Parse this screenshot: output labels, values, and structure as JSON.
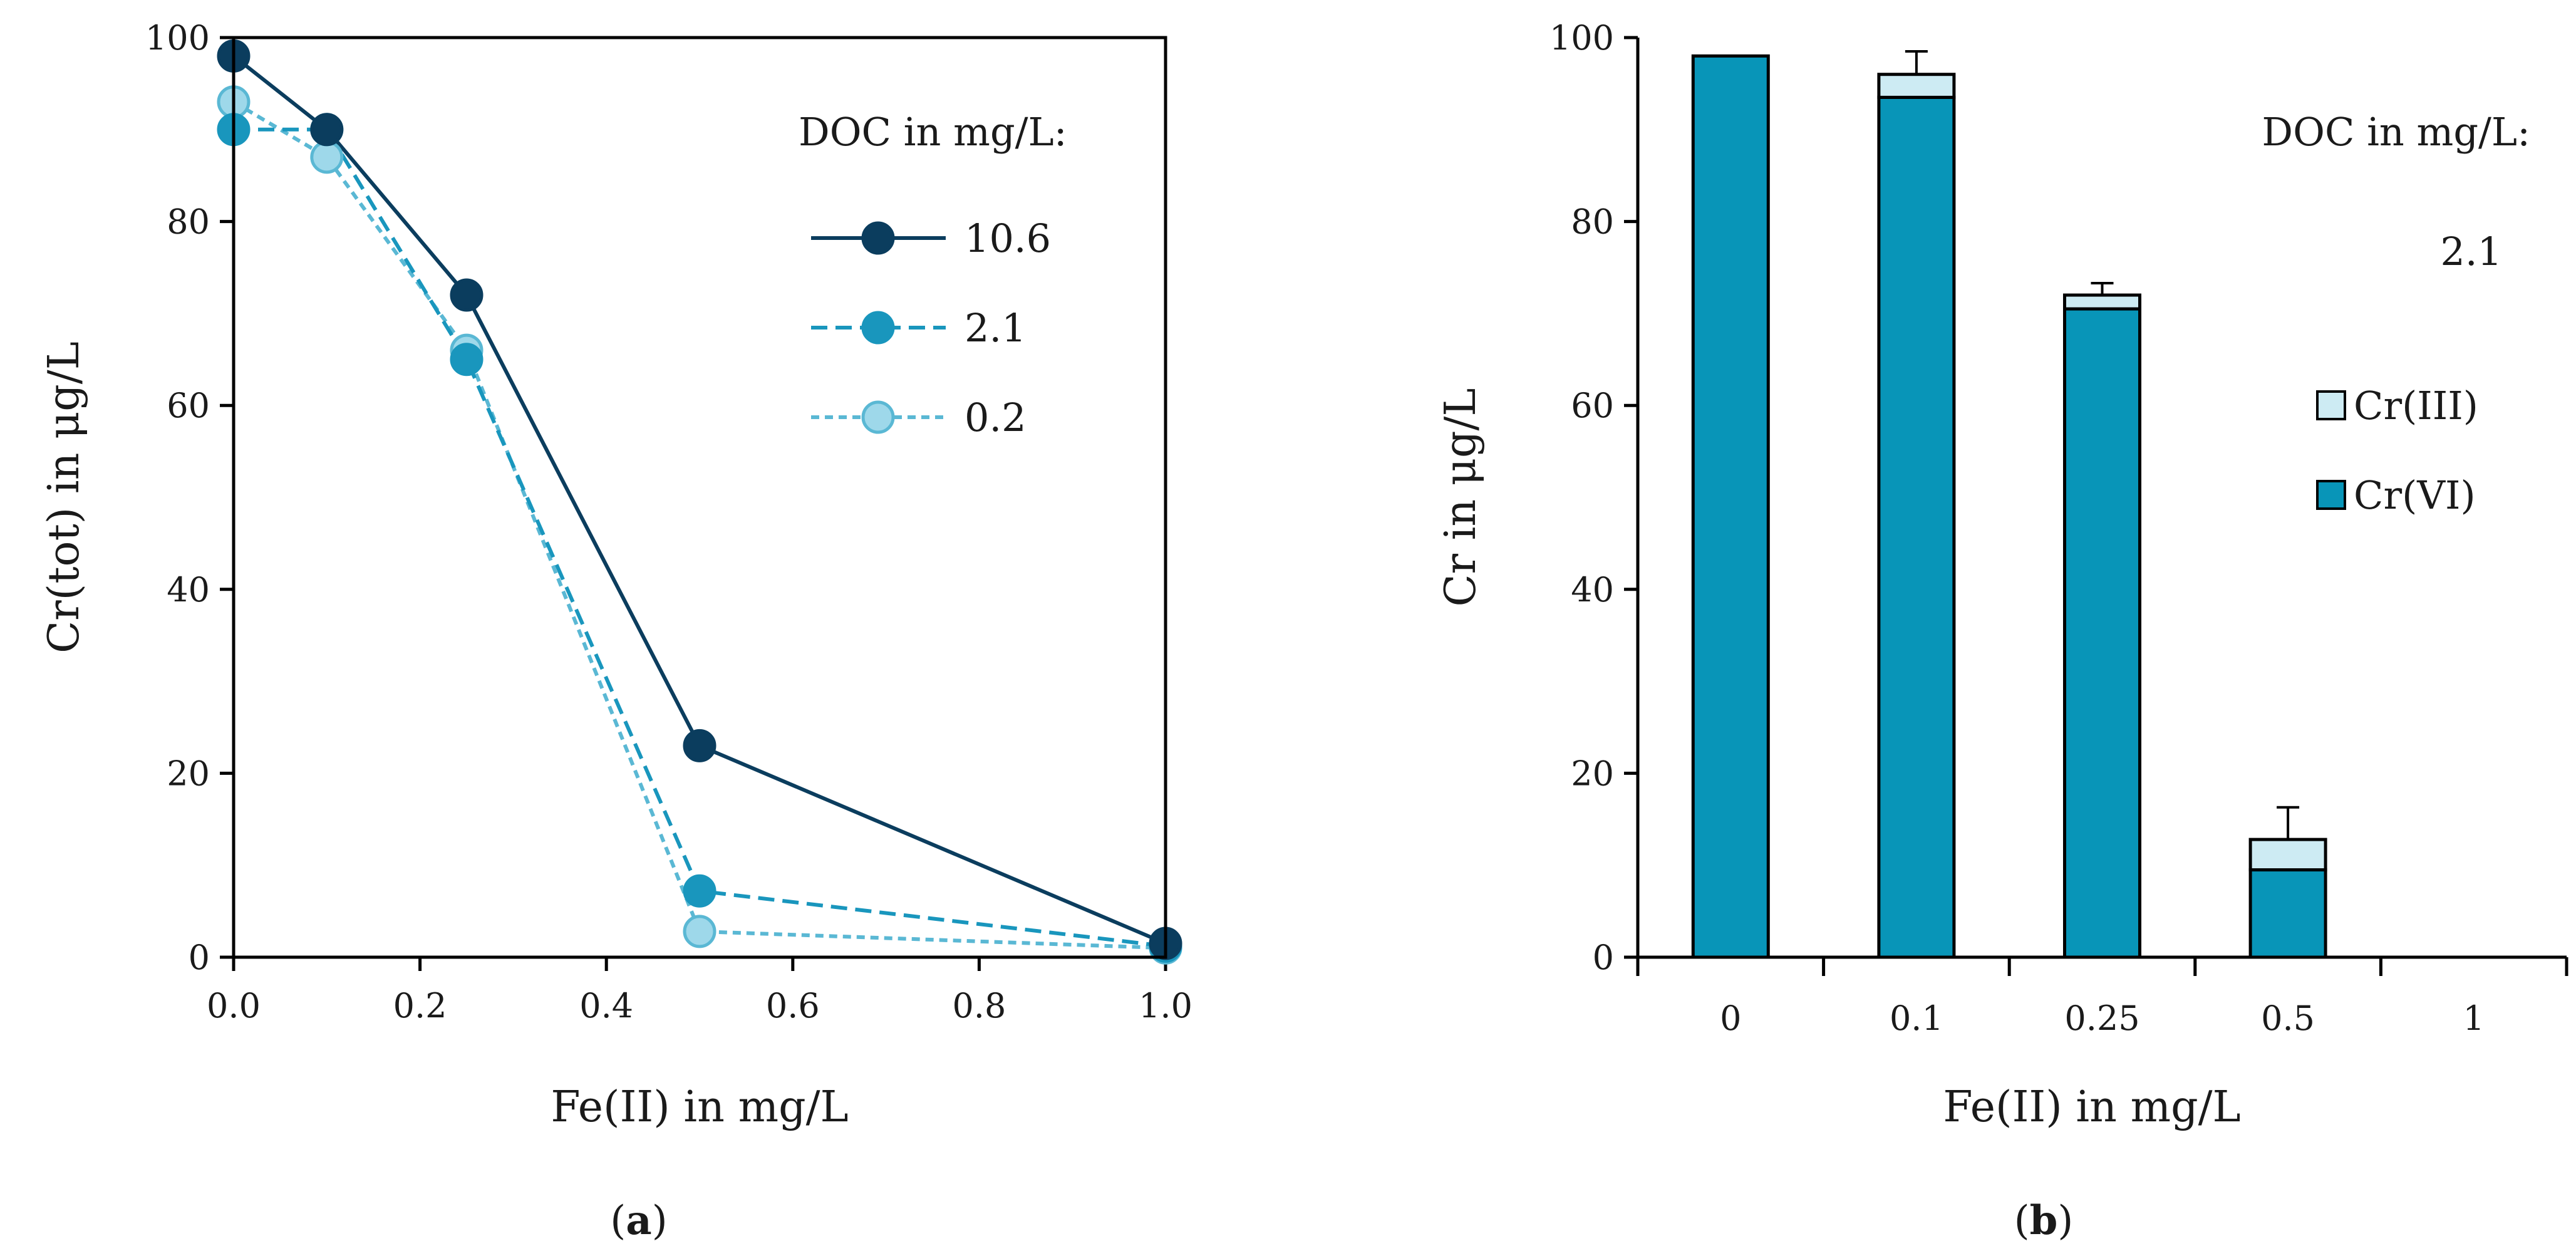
{
  "chart_data": [
    {
      "type": "line",
      "panel_label": "a",
      "xlabel": "Fe(II) in mg/L",
      "ylabel": "Cr(tot) in μg/L",
      "xlim": [
        0,
        1
      ],
      "ylim": [
        0,
        100
      ],
      "x_ticks": [
        "0.0",
        "0.2",
        "0.4",
        "0.6",
        "0.8",
        "1.0"
      ],
      "y_ticks": [
        "0",
        "20",
        "40",
        "60",
        "80",
        "100"
      ],
      "grid": false,
      "legend_title": "DOC in mg/L:",
      "legend_position": "top-right",
      "series": [
        {
          "name": "10.6",
          "style": "solid",
          "color": "#0b3d5e",
          "fill": "#0b3d5e",
          "x": [
            0,
            0.1,
            0.25,
            0.5,
            1.0
          ],
          "y": [
            98,
            90,
            72,
            23,
            1.5
          ]
        },
        {
          "name": "2.1",
          "style": "dashed",
          "color": "#1996bd",
          "fill": "#1996bd",
          "x": [
            0,
            0.1,
            0.25,
            0.5,
            1.0
          ],
          "y": [
            90,
            90,
            65,
            7.2,
            1.2
          ]
        },
        {
          "name": "0.2",
          "style": "dotted",
          "color": "#5ab8d4",
          "fill": "#9ed8ea",
          "x": [
            0,
            0.1,
            0.25,
            0.5,
            1.0
          ],
          "y": [
            93,
            87,
            66,
            2.8,
            1.0
          ]
        }
      ]
    },
    {
      "type": "bar",
      "stacked": true,
      "panel_label": "b",
      "xlabel": "Fe(II) in mg/L",
      "ylabel": "Cr in μg/L",
      "ylim": [
        0,
        100
      ],
      "y_ticks": [
        "0",
        "20",
        "40",
        "60",
        "80",
        "100"
      ],
      "grid": false,
      "categories": [
        "0",
        "0.1",
        "0.25",
        "0.5",
        "1"
      ],
      "legend_title": "DOC in mg/L:",
      "legend_value": "2.1",
      "legend_position": "right",
      "series": [
        {
          "name": "Cr(VI)",
          "color": "#0895b8",
          "values": [
            98,
            93.5,
            70.5,
            9.5,
            0
          ]
        },
        {
          "name": "Cr(III)",
          "color": "#cdebf3",
          "values": [
            0,
            2.5,
            1.5,
            3.3,
            0
          ]
        }
      ],
      "error_bars": [
        0,
        2.5,
        1.3,
        3.5,
        0
      ]
    }
  ]
}
